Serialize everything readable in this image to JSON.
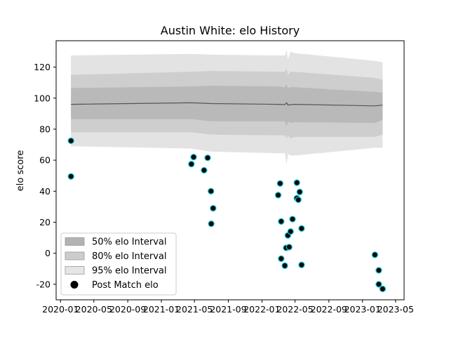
{
  "chart_data": {
    "type": "scatter",
    "title": "Austin White: elo History",
    "xlabel": "",
    "ylabel": "elo score",
    "ylim": [
      -30,
      137
    ],
    "xlim": [
      "2019-12-16",
      "2023-06-01"
    ],
    "x_ticks": [
      "2020-01",
      "2020-05",
      "2020-09",
      "2021-01",
      "2021-05",
      "2021-09",
      "2022-01",
      "2022-05",
      "2022-09",
      "2023-01",
      "2023-05"
    ],
    "y_ticks": [
      -20,
      0,
      20,
      40,
      60,
      80,
      100,
      120
    ],
    "grid": false,
    "legend_position": "lower-left",
    "legend": [
      {
        "label": "50% elo Interval",
        "kind": "band-50"
      },
      {
        "label": "80% elo Interval",
        "kind": "band-80"
      },
      {
        "label": "95% elo Interval",
        "kind": "band-95"
      },
      {
        "label": "Post Match elo",
        "kind": "marker"
      }
    ],
    "colors": {
      "band_95": "#e3e3e3",
      "band_80": "#cecece",
      "band_50": "#b9b9b9",
      "mean_line": "#555555",
      "marker_fill": "#000000",
      "marker_edge": "#17becf",
      "legend_band_50": "#b3b3b3",
      "legend_band_80": "#cccccc",
      "legend_band_95": "#e5e5e5"
    },
    "interval_series": {
      "dates": [
        "2020-02-08",
        "2021-04-20",
        "2021-07-01",
        "2022-03-01",
        "2022-03-25",
        "2022-04-01",
        "2022-04-05",
        "2022-04-15",
        "2022-05-01",
        "2023-02-15",
        "2023-03-15"
      ],
      "mean": [
        96,
        97,
        96.5,
        96,
        95.8,
        97,
        95.5,
        95.8,
        96,
        95,
        95.5
      ],
      "band_50": {
        "lower": [
          86.5,
          86.5,
          85,
          85,
          85,
          82,
          85,
          84,
          84.5,
          84,
          86
        ],
        "upper": [
          106.5,
          107.5,
          108,
          107.5,
          107,
          109,
          106.5,
          107,
          107,
          104,
          103.5
        ]
      },
      "band_80": {
        "lower": [
          78,
          78,
          76.5,
          76,
          76,
          74,
          76,
          74,
          75,
          75,
          76.5
        ],
        "upper": [
          115,
          117,
          117.5,
          117,
          117,
          119,
          115,
          117,
          117,
          113,
          112
        ]
      },
      "band_95": {
        "lower": [
          69,
          67.5,
          65.5,
          64.5,
          64.5,
          57,
          64,
          63,
          63,
          68,
          68
        ],
        "upper": [
          127.5,
          128.5,
          128,
          127.5,
          127.5,
          131,
          125,
          130,
          129,
          124,
          123
        ]
      }
    },
    "points": [
      {
        "x": "2020-02-08",
        "y": 72.5
      },
      {
        "x": "2020-02-08",
        "y": 49.5
      },
      {
        "x": "2021-04-20",
        "y": 57.5
      },
      {
        "x": "2021-04-28",
        "y": 62
      },
      {
        "x": "2021-06-05",
        "y": 53.5
      },
      {
        "x": "2021-06-18",
        "y": 61.5
      },
      {
        "x": "2021-06-30",
        "y": 40
      },
      {
        "x": "2021-07-08",
        "y": 29
      },
      {
        "x": "2021-07-01",
        "y": 19
      },
      {
        "x": "2022-03-01",
        "y": 37.5
      },
      {
        "x": "2022-03-08",
        "y": 45
      },
      {
        "x": "2022-03-12",
        "y": 20.5
      },
      {
        "x": "2022-03-12",
        "y": -3.5
      },
      {
        "x": "2022-03-25",
        "y": -8
      },
      {
        "x": "2022-03-30",
        "y": 3.5
      },
      {
        "x": "2022-04-05",
        "y": 11.5
      },
      {
        "x": "2022-04-10",
        "y": 4
      },
      {
        "x": "2022-04-15",
        "y": 14
      },
      {
        "x": "2022-04-22",
        "y": 22
      },
      {
        "x": "2022-05-08",
        "y": 45.5
      },
      {
        "x": "2022-05-08",
        "y": 35.5
      },
      {
        "x": "2022-05-13",
        "y": 34.5
      },
      {
        "x": "2022-05-18",
        "y": 39.5
      },
      {
        "x": "2022-05-25",
        "y": 16
      },
      {
        "x": "2022-05-25",
        "y": -7.5
      },
      {
        "x": "2023-02-15",
        "y": -1
      },
      {
        "x": "2023-03-01",
        "y": -11
      },
      {
        "x": "2023-03-01",
        "y": -20
      },
      {
        "x": "2023-03-15",
        "y": -23
      }
    ]
  }
}
